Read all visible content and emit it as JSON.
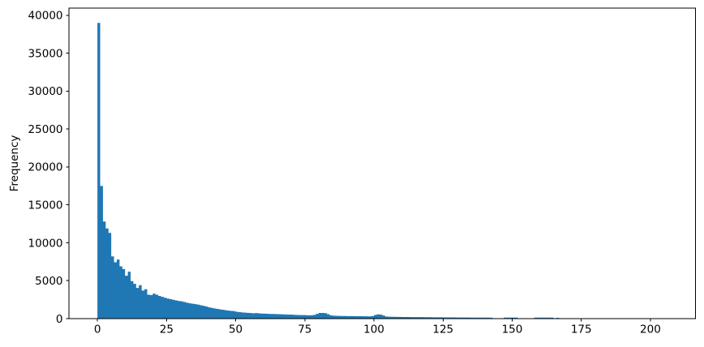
{
  "figure": {
    "background": "#ffffff"
  },
  "chart_data": {
    "type": "bar",
    "subtype": "histogram",
    "title": "",
    "xlabel": "",
    "ylabel": "Frequency",
    "bar_color": "#1f77b4",
    "axis_color": "#000000",
    "grid": false,
    "legend": false,
    "xlim": [
      -10.3,
      216.3
    ],
    "ylim": [
      0,
      40950
    ],
    "x_ticks": [
      0,
      25,
      50,
      75,
      100,
      125,
      150,
      175,
      200
    ],
    "y_ticks": [
      0,
      5000,
      10000,
      15000,
      20000,
      25000,
      30000,
      35000,
      40000
    ],
    "bin_start": 0,
    "bin_width": 1,
    "values": [
      39000,
      17500,
      12800,
      11900,
      11300,
      8200,
      7430,
      7790,
      6900,
      6540,
      5650,
      6190,
      4940,
      4590,
      4050,
      4410,
      3700,
      3880,
      3160,
      3100,
      3300,
      3150,
      3000,
      2870,
      2750,
      2640,
      2560,
      2480,
      2400,
      2330,
      2280,
      2190,
      2100,
      2020,
      1960,
      1915,
      1840,
      1760,
      1680,
      1590,
      1480,
      1410,
      1340,
      1280,
      1215,
      1160,
      1110,
      1060,
      1010,
      990,
      900,
      855,
      815,
      790,
      765,
      740,
      710,
      730,
      690,
      665,
      650,
      635,
      620,
      610,
      600,
      585,
      570,
      555,
      540,
      530,
      515,
      500,
      485,
      470,
      465,
      455,
      445,
      435,
      500,
      630,
      750,
      745,
      720,
      590,
      430,
      385,
      370,
      360,
      350,
      345,
      340,
      335,
      330,
      325,
      320,
      315,
      310,
      305,
      300,
      330,
      480,
      560,
      540,
      420,
      280,
      255,
      245,
      235,
      230,
      225,
      220,
      215,
      210,
      205,
      200,
      200,
      195,
      195,
      190,
      185,
      185,
      180,
      175,
      175,
      170,
      165,
      165,
      160,
      155,
      155,
      150,
      150,
      145,
      145,
      145,
      140,
      140,
      135,
      135,
      130,
      130,
      130,
      125,
      0,
      0,
      0,
      0,
      130,
      130,
      130,
      130,
      130,
      0,
      0,
      0,
      0,
      0,
      0,
      140,
      140,
      140,
      140,
      140,
      140,
      140,
      0,
      110
    ]
  }
}
